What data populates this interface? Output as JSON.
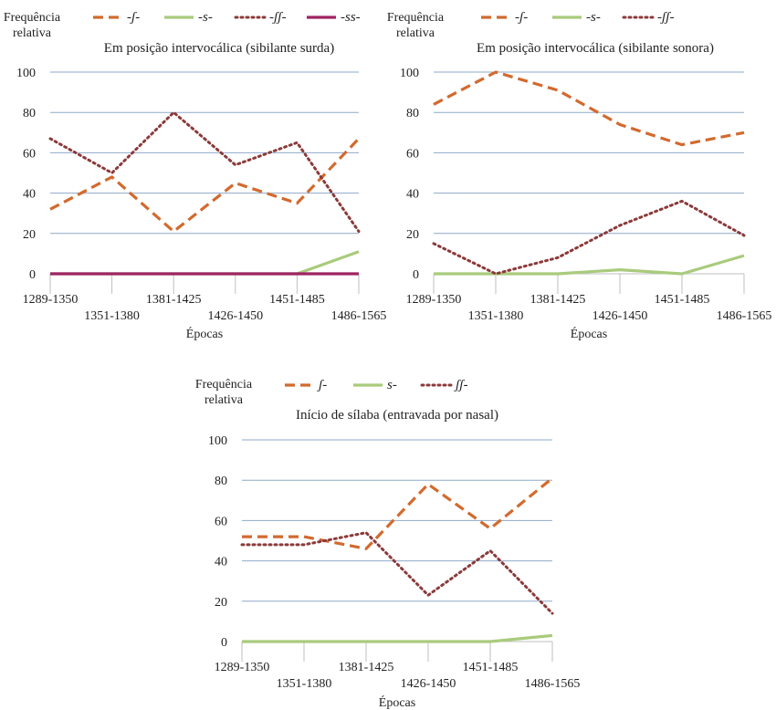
{
  "colors": {
    "series1": "#D26A2E",
    "series2": "#A9CB7C",
    "series3": "#8B3A3A",
    "series4": "#9E2462",
    "gridline": "#8FA8C8",
    "axis": "#BFBFBF"
  },
  "chart_data": [
    {
      "type": "line",
      "title": "Em posição intervocálica (sibilante surda)",
      "ylabel": "Frequência relativa",
      "xlabel": "Épocas",
      "categories": [
        "1289-1350",
        "1351-1380",
        "1381-1425",
        "1426-1450",
        "1451-1485",
        "1486-1565"
      ],
      "ylim": [
        0,
        100
      ],
      "yticks": [
        0,
        20,
        40,
        60,
        80,
        100
      ],
      "grid": true,
      "legend_position": "top",
      "series": [
        {
          "name": "-ʃ-",
          "style": "dashed",
          "color_key": "series1",
          "values": [
            32,
            48,
            21,
            45,
            35,
            67
          ]
        },
        {
          "name": "-s-",
          "style": "solid",
          "color_key": "series2",
          "values": [
            0,
            0,
            0,
            0,
            0,
            11
          ]
        },
        {
          "name": "-ʃʃ-",
          "style": "dotted",
          "color_key": "series3",
          "values": [
            67,
            50,
            80,
            54,
            65,
            21
          ]
        },
        {
          "name": "-ss-",
          "style": "solid",
          "color_key": "series4",
          "values": [
            0,
            0,
            0,
            0,
            0,
            0
          ]
        }
      ]
    },
    {
      "type": "line",
      "title": "Em posição intervocálica (sibilante sonora)",
      "ylabel": "Frequência relativa",
      "xlabel": "Épocas",
      "categories": [
        "1289-1350",
        "1351-1380",
        "1381-1425",
        "1426-1450",
        "1451-1485",
        "1486-1565"
      ],
      "ylim": [
        0,
        100
      ],
      "yticks": [
        0,
        20,
        40,
        60,
        80,
        100
      ],
      "grid": true,
      "legend_position": "top",
      "series": [
        {
          "name": "-ʃ-",
          "style": "dashed",
          "color_key": "series1",
          "values": [
            84,
            100,
            91,
            74,
            64,
            70
          ]
        },
        {
          "name": "-s-",
          "style": "solid",
          "color_key": "series2",
          "values": [
            0,
            0,
            0,
            2,
            0,
            9
          ]
        },
        {
          "name": "-ʃʃ-",
          "style": "dotted",
          "color_key": "series3",
          "values": [
            15,
            0,
            8,
            24,
            36,
            19
          ]
        }
      ]
    },
    {
      "type": "line",
      "title": "Início de sílaba (entravada por nasal)",
      "ylabel": "Frequência relativa",
      "xlabel": "Épocas",
      "categories": [
        "1289-1350",
        "1351-1380",
        "1381-1425",
        "1426-1450",
        "1451-1485",
        "1486-1565"
      ],
      "ylim": [
        0,
        100
      ],
      "yticks": [
        0,
        20,
        40,
        60,
        80,
        100
      ],
      "grid": true,
      "legend_position": "top",
      "series": [
        {
          "name": "ʃ-",
          "style": "dashed",
          "color_key": "series1",
          "values": [
            52,
            52,
            46,
            78,
            56,
            81
          ]
        },
        {
          "name": "s-",
          "style": "solid",
          "color_key": "series2",
          "values": [
            0,
            0,
            0,
            0,
            0,
            3
          ]
        },
        {
          "name": "ʃʃ-",
          "style": "dotted",
          "color_key": "series3",
          "values": [
            48,
            48,
            54,
            23,
            45,
            14
          ]
        }
      ]
    }
  ]
}
